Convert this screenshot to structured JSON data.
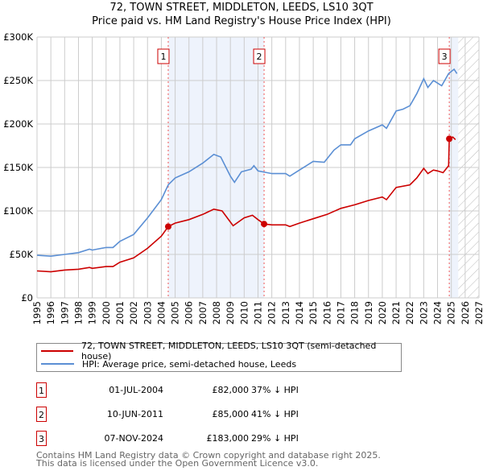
{
  "title": "72, TOWN STREET, MIDDLETON, LEEDS, LS10 3QT",
  "subtitle": "Price paid vs. HM Land Registry's House Price Index (HPI)",
  "chart_data": {
    "type": "line",
    "xlim": [
      1995,
      2027
    ],
    "ylim": [
      0,
      300000
    ],
    "yticks": [
      0,
      50000,
      100000,
      150000,
      200000,
      250000,
      300000
    ],
    "ytick_labels": [
      "£0",
      "£50K",
      "£100K",
      "£150K",
      "£200K",
      "£250K",
      "£300K"
    ],
    "xticks": [
      1995,
      1996,
      1997,
      1998,
      1999,
      2000,
      2001,
      2002,
      2003,
      2004,
      2005,
      2006,
      2007,
      2008,
      2009,
      2010,
      2011,
      2012,
      2013,
      2014,
      2015,
      2016,
      2017,
      2018,
      2019,
      2020,
      2021,
      2022,
      2023,
      2024,
      2025,
      2026,
      2027
    ],
    "grid": true,
    "shaded_periods": [
      [
        2004.5,
        2011.44
      ],
      [
        2024.85,
        2025.5
      ]
    ],
    "forecast_hatch": [
      2025.5,
      2027
    ],
    "series": [
      {
        "name": "72, TOWN STREET, MIDDLETON, LEEDS, LS10 3QT (semi-detached house)",
        "color": "#cc0000",
        "x": [
          1995,
          1996,
          1997,
          1998,
          1998.8,
          1999,
          2000,
          2000.5,
          2001,
          2002,
          2003,
          2004,
          2004.5,
          2005,
          2006,
          2007,
          2007.8,
          2008.4,
          2009.2,
          2010,
          2010.6,
          2011,
          2011.44,
          2012,
          2013,
          2013.3,
          2014,
          2015,
          2016,
          2017,
          2018,
          2019,
          2020,
          2020.3,
          2021,
          2022,
          2022.5,
          2023,
          2023.3,
          2023.7,
          2024,
          2024.4,
          2024.8,
          2024.85,
          2025.1,
          2025.3
        ],
        "y": [
          31000,
          30000,
          32000,
          33000,
          35000,
          34000,
          36000,
          36000,
          41000,
          46000,
          57000,
          71000,
          82000,
          86000,
          90000,
          96000,
          102000,
          100000,
          83000,
          92000,
          95000,
          90000,
          85000,
          84000,
          84000,
          82000,
          86000,
          91000,
          96000,
          103000,
          107000,
          112000,
          116000,
          113000,
          127000,
          130000,
          138000,
          149000,
          143000,
          147000,
          146000,
          144000,
          152000,
          183000,
          185000,
          182000
        ]
      },
      {
        "name": "HPI: Average price, semi-detached house, Leeds",
        "color": "#5b8fd4",
        "x": [
          1995,
          1996,
          1997,
          1998,
          1998.8,
          1999,
          2000,
          2000.5,
          2001,
          2002,
          2003,
          2004,
          2004.5,
          2005,
          2006,
          2007,
          2007.8,
          2008.3,
          2009,
          2009.3,
          2009.8,
          2010.5,
          2010.7,
          2011,
          2012,
          2013,
          2013.3,
          2014,
          2015,
          2015.8,
          2016.5,
          2017,
          2017.7,
          2018,
          2019,
          2020,
          2020.3,
          2021,
          2021.5,
          2022,
          2022.5,
          2023,
          2023.3,
          2023.7,
          2024,
          2024.3,
          2024.8,
          2025.2,
          2025.4
        ],
        "y": [
          49000,
          48000,
          50000,
          52000,
          56000,
          55000,
          58000,
          58000,
          65000,
          73000,
          92000,
          113000,
          130000,
          138000,
          145000,
          155000,
          165000,
          162000,
          140000,
          133000,
          145000,
          148000,
          152000,
          146000,
          143000,
          143000,
          140000,
          147000,
          157000,
          156000,
          170000,
          176000,
          176000,
          183000,
          192000,
          199000,
          195000,
          215000,
          217000,
          221000,
          235000,
          252000,
          242000,
          250000,
          247000,
          244000,
          258000,
          263000,
          258000
        ]
      }
    ],
    "sales": [
      {
        "label": "1",
        "x": 2004.5,
        "price": 82000
      },
      {
        "label": "2",
        "x": 2011.44,
        "price": 85000
      },
      {
        "label": "3",
        "x": 2024.85,
        "price": 183000
      }
    ]
  },
  "legend": {
    "items": [
      "72, TOWN STREET, MIDDLETON, LEEDS, LS10 3QT (semi-detached house)",
      "HPI: Average price, semi-detached house, Leeds"
    ]
  },
  "transactions": [
    {
      "num": "1",
      "date": "01-JUL-2004",
      "price": "£82,000",
      "hpi": "37% ↓ HPI"
    },
    {
      "num": "2",
      "date": "10-JUN-2011",
      "price": "£85,000",
      "hpi": "41% ↓ HPI"
    },
    {
      "num": "3",
      "date": "07-NOV-2024",
      "price": "£183,000",
      "hpi": "29% ↓ HPI"
    }
  ],
  "footer": [
    "Contains HM Land Registry data © Crown copyright and database right 2025.",
    "This data is licensed under the Open Government Licence v3.0."
  ]
}
